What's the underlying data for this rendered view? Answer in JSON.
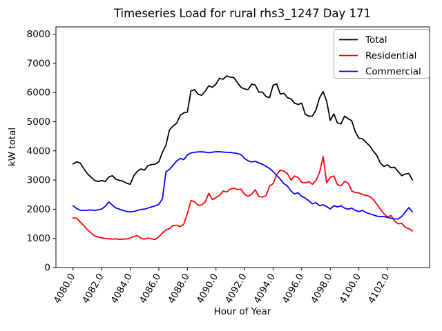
{
  "chart_data": {
    "type": "line",
    "title": "Timeseries Load for rural rhs3_1247  Day 171",
    "xlabel": "Hour of Year",
    "ylabel": "kW total",
    "xlim": [
      4078.8,
      4104.95
    ],
    "ylim": [
      0,
      8250
    ],
    "grid": false,
    "legend_position": "upper right",
    "x_ticks": [
      {
        "value": 4080,
        "label": "4080.0"
      },
      {
        "value": 4082,
        "label": "4082.0"
      },
      {
        "value": 4084,
        "label": "4084.0"
      },
      {
        "value": 4086,
        "label": "4086.0"
      },
      {
        "value": 4088,
        "label": "4088.0"
      },
      {
        "value": 4090,
        "label": "4090.0"
      },
      {
        "value": 4092,
        "label": "4092.0"
      },
      {
        "value": 4094,
        "label": "4094.0"
      },
      {
        "value": 4096,
        "label": "4096.0"
      },
      {
        "value": 4098,
        "label": "4098.0"
      },
      {
        "value": 4100,
        "label": "4100.0"
      },
      {
        "value": 4102,
        "label": "4102.0"
      }
    ],
    "y_ticks": [
      {
        "value": 0,
        "label": "0"
      },
      {
        "value": 1000,
        "label": "1000"
      },
      {
        "value": 2000,
        "label": "2000"
      },
      {
        "value": 3000,
        "label": "3000"
      },
      {
        "value": 4000,
        "label": "4000"
      },
      {
        "value": 5000,
        "label": "5000"
      },
      {
        "value": 6000,
        "label": "6000"
      },
      {
        "value": 7000,
        "label": "7000"
      },
      {
        "value": 8000,
        "label": "8000"
      }
    ],
    "x_start": 4080.0,
    "x_step": 0.25,
    "series": [
      {
        "name": "Total",
        "color": "#000000",
        "values": [
          3550,
          3625,
          3580,
          3390,
          3220,
          3100,
          2990,
          2950,
          2985,
          2950,
          3105,
          3150,
          3030,
          2990,
          2960,
          2890,
          2855,
          3150,
          3300,
          3380,
          3340,
          3500,
          3530,
          3545,
          3625,
          3945,
          4200,
          4720,
          4855,
          4950,
          5220,
          5300,
          5330,
          6060,
          6100,
          5940,
          5905,
          6050,
          6230,
          6180,
          6290,
          6490,
          6455,
          6570,
          6530,
          6510,
          6340,
          6180,
          6120,
          6100,
          6290,
          6250,
          6020,
          6015,
          5865,
          5825,
          6250,
          6295,
          5945,
          5975,
          5825,
          5780,
          5635,
          5590,
          5635,
          5255,
          5190,
          5195,
          5400,
          5820,
          6030,
          5700,
          5045,
          5270,
          4960,
          4925,
          5190,
          5105,
          5035,
          4655,
          4435,
          4415,
          4295,
          4175,
          4000,
          3850,
          3590,
          3465,
          3520,
          3425,
          3440,
          3290,
          3150,
          3205,
          3225,
          3005
        ]
      },
      {
        "name": "Residential",
        "color": "#ff0000",
        "values": [
          1700,
          1690,
          1560,
          1440,
          1300,
          1190,
          1090,
          1045,
          1020,
          995,
          990,
          975,
          985,
          965,
          975,
          980,
          1015,
          1065,
          1095,
          1000,
          975,
          1015,
          980,
          960,
          1055,
          1180,
          1290,
          1340,
          1440,
          1450,
          1400,
          1490,
          1850,
          2300,
          2255,
          2140,
          2145,
          2255,
          2545,
          2330,
          2400,
          2470,
          2625,
          2590,
          2690,
          2725,
          2675,
          2690,
          2510,
          2440,
          2515,
          2665,
          2440,
          2415,
          2460,
          2790,
          2880,
          3185,
          3340,
          3310,
          3220,
          3000,
          3140,
          3090,
          2920,
          2905,
          2945,
          2855,
          2985,
          3260,
          3810,
          2905,
          3100,
          3140,
          2845,
          2800,
          2950,
          2900,
          2630,
          2570,
          2560,
          2500,
          2480,
          2440,
          2340,
          2180,
          2010,
          1850,
          1730,
          1785,
          1600,
          1500,
          1515,
          1380,
          1330,
          1255
        ]
      },
      {
        "name": "Commercial",
        "color": "#0000ff",
        "values": [
          2120,
          2025,
          1965,
          1960,
          1965,
          1975,
          1960,
          1980,
          2005,
          2100,
          2250,
          2140,
          2040,
          2000,
          1960,
          1925,
          1905,
          1920,
          1955,
          1990,
          2005,
          2040,
          2080,
          2115,
          2170,
          2350,
          3280,
          3370,
          3505,
          3655,
          3740,
          3700,
          3860,
          3930,
          3950,
          3965,
          3970,
          3955,
          3935,
          3955,
          3970,
          3970,
          3960,
          3950,
          3945,
          3930,
          3910,
          3870,
          3740,
          3660,
          3620,
          3645,
          3590,
          3540,
          3470,
          3400,
          3290,
          3160,
          3030,
          2880,
          2790,
          2630,
          2520,
          2565,
          2440,
          2380,
          2290,
          2185,
          2225,
          2120,
          2150,
          2090,
          2010,
          2120,
          2080,
          2120,
          2040,
          2000,
          2040,
          1960,
          1920,
          1960,
          1885,
          1845,
          1805,
          1765,
          1745,
          1750,
          1720,
          1690,
          1670,
          1665,
          1750,
          1905,
          2055,
          1910
        ]
      }
    ]
  }
}
